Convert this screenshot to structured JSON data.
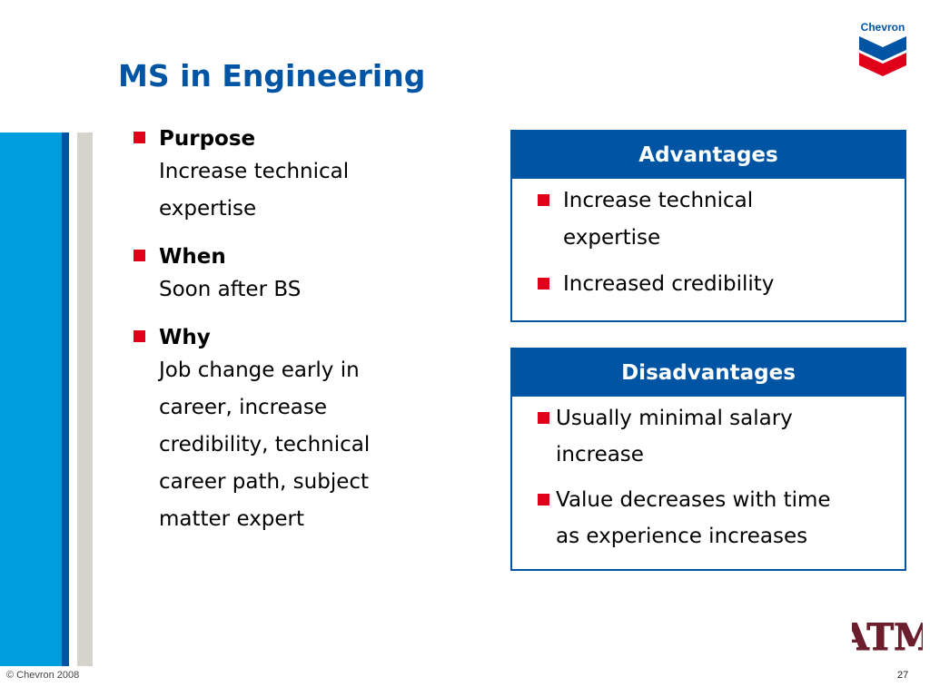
{
  "slide": {
    "title": "MS in Engineering",
    "footer": "© Chevron 2008",
    "page_number": "27"
  },
  "logos": {
    "chevron": {
      "text": "Chevron",
      "colors": {
        "blue": "#0054a4",
        "red": "#e1001a"
      }
    },
    "atm": {
      "text": "ATM",
      "color": "#6b1e2c"
    }
  },
  "colors": {
    "accent_blue": "#0054a4",
    "accent_cyan": "#009ddc",
    "bullet_red": "#e1001a",
    "side_gray": "#d6d2cc"
  },
  "bullets": [
    {
      "heading": "Purpose",
      "lines": [
        "Increase technical",
        "expertise"
      ]
    },
    {
      "heading": "When",
      "lines": [
        "Soon after BS"
      ]
    },
    {
      "heading": "Why",
      "lines": [
        "Job change early in",
        "career, increase",
        "credibility, technical",
        "career path, subject",
        "matter expert"
      ]
    }
  ],
  "advantages": {
    "header": "Advantages",
    "items": [
      [
        "Increase technical",
        "expertise"
      ],
      [
        "Increased credibility"
      ]
    ]
  },
  "disadvantages": {
    "header": "Disadvantages",
    "items": [
      [
        "Usually minimal salary",
        "increase"
      ],
      [
        "Value decreases with time",
        "as experience increases"
      ]
    ]
  }
}
